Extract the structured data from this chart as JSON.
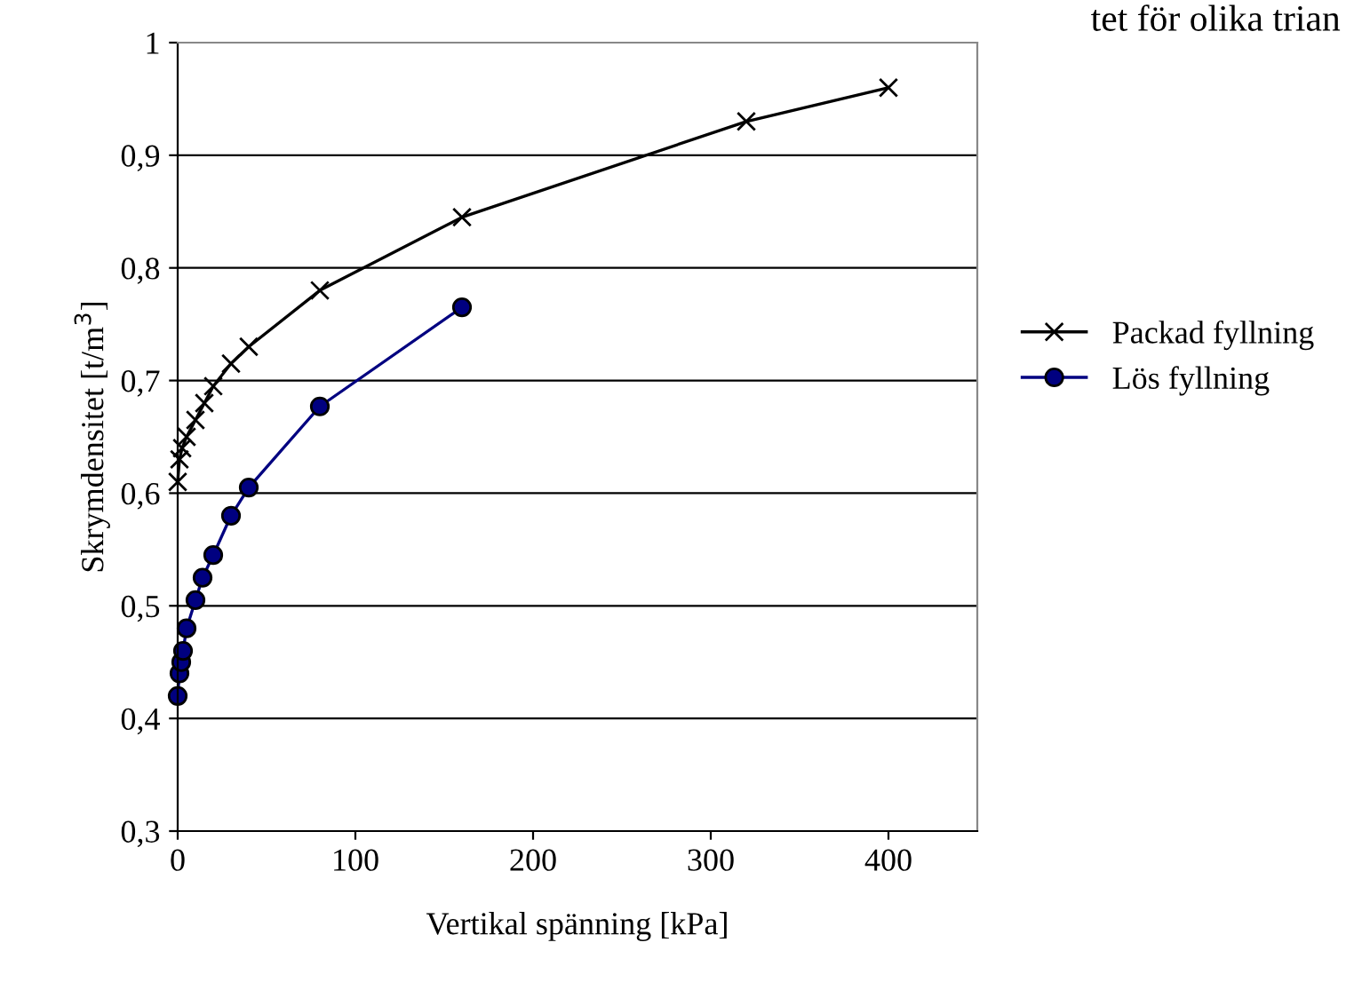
{
  "chart_data": {
    "type": "line",
    "xlabel": "Vertikal spänning [kPa]",
    "ylabel": "Skrymdensitet [t/m$^{3}$]",
    "annotations": [
      "tet för olika trian"
    ],
    "series": [
      {
        "name": "Packad fyllning",
        "color": "#000000",
        "marker": "cross",
        "x": [
          0,
          1,
          2.5,
          5,
          10,
          15,
          20,
          30,
          40,
          80,
          160,
          320,
          400
        ],
        "values": [
          0.61,
          0.63,
          0.64,
          0.65,
          0.665,
          0.68,
          0.695,
          0.715,
          0.73,
          0.78,
          0.845,
          0.93,
          0.96
        ]
      },
      {
        "name": "Lös fyllning",
        "color": "#000080",
        "marker": "circle",
        "x": [
          0,
          1,
          2,
          3,
          5,
          10,
          14,
          20,
          30,
          40,
          80,
          160
        ],
        "values": [
          0.42,
          0.44,
          0.45,
          0.46,
          0.48,
          0.505,
          0.525,
          0.545,
          0.58,
          0.605,
          0.677,
          0.765
        ]
      }
    ],
    "xlim": [
      0,
      450
    ],
    "xticks": [
      0,
      100,
      200,
      300,
      400
    ],
    "ylim": [
      0.3,
      1
    ],
    "yticks": [
      {
        "value": 0.3,
        "label": "0,3"
      },
      {
        "value": 0.4,
        "label": "0,4"
      },
      {
        "value": 0.5,
        "label": "0,5"
      },
      {
        "value": 0.6,
        "label": "0,6"
      },
      {
        "value": 0.7,
        "label": "0,7"
      },
      {
        "value": 0.8,
        "label": "0,8"
      },
      {
        "value": 0.9,
        "label": "0,9"
      },
      {
        "value": 1,
        "label": "1"
      }
    ],
    "grid": "y",
    "legend": "right",
    "line_style": "solid"
  }
}
